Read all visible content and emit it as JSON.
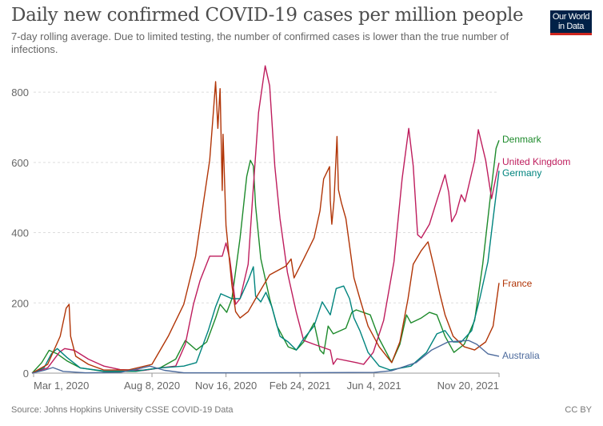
{
  "header": {
    "title": "Daily new confirmed COVID-19 cases per million people",
    "subtitle": "7-day rolling average. Due to limited testing, the number of confirmed cases is lower than the true number of infections.",
    "logo_text": "Our World in Data"
  },
  "footer": {
    "source": "Source: Johns Hopkins University CSSE COVID-19 Data",
    "license": "CC BY"
  },
  "chart_data": {
    "type": "line",
    "title": "Daily new confirmed COVID-19 cases per million people",
    "ylim": [
      0,
      880
    ],
    "xlim": [
      "2020-03-01",
      "2021-11-20"
    ],
    "grid": "horizontal dashed",
    "legend": "right, inline labels at line ends",
    "y_ticks": [
      "0",
      "200",
      "400",
      "600",
      "800"
    ],
    "y_tick_values": [
      0,
      200,
      400,
      600,
      800
    ],
    "x_ticks": [
      {
        "label": "Mar 1, 2020",
        "date": "2020-03-01"
      },
      {
        "label": "Aug 8, 2020",
        "date": "2020-08-08"
      },
      {
        "label": "Nov 16, 2020",
        "date": "2020-11-16"
      },
      {
        "label": "Feb 24, 2021",
        "date": "2021-02-24"
      },
      {
        "label": "Jun 4, 2021",
        "date": "2021-06-04"
      },
      {
        "label": "Nov 20, 2021",
        "date": "2021-11-20"
      }
    ],
    "series": [
      {
        "name": "Denmark",
        "color": "#1d8a2b",
        "points": [
          [
            "2020-02-28",
            0
          ],
          [
            "2020-03-12",
            30
          ],
          [
            "2020-03-22",
            65
          ],
          [
            "2020-04-02",
            55
          ],
          [
            "2020-04-15",
            35
          ],
          [
            "2020-05-03",
            15
          ],
          [
            "2020-06-04",
            5
          ],
          [
            "2020-07-17",
            5
          ],
          [
            "2020-08-19",
            15
          ],
          [
            "2020-09-09",
            40
          ],
          [
            "2020-09-22",
            93
          ],
          [
            "2020-10-07",
            66
          ],
          [
            "2020-10-21",
            89
          ],
          [
            "2020-11-02",
            157
          ],
          [
            "2020-11-08",
            196
          ],
          [
            "2020-11-17",
            173
          ],
          [
            "2020-11-24",
            212
          ],
          [
            "2020-12-05",
            385
          ],
          [
            "2020-12-14",
            560
          ],
          [
            "2020-12-19",
            606
          ],
          [
            "2020-12-23",
            590
          ],
          [
            "2020-12-26",
            476
          ],
          [
            "2021-01-02",
            326
          ],
          [
            "2021-01-14",
            212
          ],
          [
            "2021-01-24",
            134
          ],
          [
            "2021-02-08",
            75
          ],
          [
            "2021-02-19",
            66
          ],
          [
            "2021-03-01",
            89
          ],
          [
            "2021-03-15",
            143
          ],
          [
            "2021-03-23",
            66
          ],
          [
            "2021-03-28",
            55
          ],
          [
            "2021-04-03",
            134
          ],
          [
            "2021-04-10",
            112
          ],
          [
            "2021-04-27",
            128
          ],
          [
            "2021-05-05",
            173
          ],
          [
            "2021-05-11",
            180
          ],
          [
            "2021-05-30",
            166
          ],
          [
            "2021-06-11",
            98
          ],
          [
            "2021-06-28",
            30
          ],
          [
            "2021-07-09",
            82
          ],
          [
            "2021-07-18",
            166
          ],
          [
            "2021-07-24",
            143
          ],
          [
            "2021-08-07",
            157
          ],
          [
            "2021-08-18",
            173
          ],
          [
            "2021-08-28",
            166
          ],
          [
            "2021-09-08",
            105
          ],
          [
            "2021-09-20",
            59
          ],
          [
            "2021-10-04",
            82
          ],
          [
            "2021-10-18",
            150
          ],
          [
            "2021-10-29",
            310
          ],
          [
            "2021-11-09",
            515
          ],
          [
            "2021-11-16",
            640
          ],
          [
            "2021-11-20",
            663
          ]
        ]
      },
      {
        "name": "United Kingdom",
        "color": "#be1d5d",
        "points": [
          [
            "2020-02-28",
            0
          ],
          [
            "2020-03-20",
            15
          ],
          [
            "2020-04-05",
            60
          ],
          [
            "2020-04-12",
            70
          ],
          [
            "2020-04-25",
            65
          ],
          [
            "2020-05-14",
            40
          ],
          [
            "2020-06-04",
            20
          ],
          [
            "2020-06-26",
            10
          ],
          [
            "2020-07-28",
            8
          ],
          [
            "2020-08-19",
            15
          ],
          [
            "2020-09-09",
            20
          ],
          [
            "2020-09-22",
            82
          ],
          [
            "2020-10-03",
            196
          ],
          [
            "2020-10-12",
            264
          ],
          [
            "2020-10-25",
            333
          ],
          [
            "2020-11-11",
            333
          ],
          [
            "2020-11-16",
            371
          ],
          [
            "2020-11-21",
            326
          ],
          [
            "2020-11-29",
            196
          ],
          [
            "2020-12-05",
            212
          ],
          [
            "2020-12-16",
            310
          ],
          [
            "2020-12-23",
            530
          ],
          [
            "2020-12-30",
            742
          ],
          [
            "2021-01-08",
            875
          ],
          [
            "2021-01-14",
            818
          ],
          [
            "2021-01-21",
            590
          ],
          [
            "2021-01-28",
            440
          ],
          [
            "2021-02-07",
            287
          ],
          [
            "2021-02-19",
            173
          ],
          [
            "2021-03-01",
            93
          ],
          [
            "2021-03-15",
            82
          ],
          [
            "2021-04-06",
            66
          ],
          [
            "2021-04-10",
            25
          ],
          [
            "2021-04-15",
            41
          ],
          [
            "2021-05-11",
            30
          ],
          [
            "2021-05-21",
            25
          ],
          [
            "2021-06-03",
            59
          ],
          [
            "2021-06-17",
            150
          ],
          [
            "2021-07-01",
            317
          ],
          [
            "2021-07-12",
            553
          ],
          [
            "2021-07-21",
            697
          ],
          [
            "2021-07-27",
            590
          ],
          [
            "2021-08-02",
            394
          ],
          [
            "2021-08-07",
            385
          ],
          [
            "2021-08-18",
            424
          ],
          [
            "2021-08-28",
            492
          ],
          [
            "2021-09-08",
            565
          ],
          [
            "2021-09-13",
            515
          ],
          [
            "2021-09-17",
            431
          ],
          [
            "2021-09-23",
            454
          ],
          [
            "2021-09-30",
            508
          ],
          [
            "2021-10-05",
            488
          ],
          [
            "2021-10-18",
            606
          ],
          [
            "2021-10-23",
            693
          ],
          [
            "2021-11-02",
            606
          ],
          [
            "2021-11-10",
            497
          ],
          [
            "2021-11-16",
            560
          ],
          [
            "2021-11-20",
            599
          ]
        ]
      },
      {
        "name": "Germany",
        "color": "#00847e",
        "points": [
          [
            "2020-02-28",
            0
          ],
          [
            "2020-03-15",
            15
          ],
          [
            "2020-03-25",
            55
          ],
          [
            "2020-04-02",
            70
          ],
          [
            "2020-04-15",
            45
          ],
          [
            "2020-05-03",
            15
          ],
          [
            "2020-06-04",
            6
          ],
          [
            "2020-07-17",
            6
          ],
          [
            "2020-08-19",
            15
          ],
          [
            "2020-09-20",
            20
          ],
          [
            "2020-10-07",
            30
          ],
          [
            "2020-10-23",
            121
          ],
          [
            "2020-11-02",
            189
          ],
          [
            "2020-11-09",
            226
          ],
          [
            "2020-11-24",
            212
          ],
          [
            "2020-12-05",
            212
          ],
          [
            "2020-12-16",
            264
          ],
          [
            "2020-12-23",
            303
          ],
          [
            "2020-12-26",
            219
          ],
          [
            "2021-01-02",
            203
          ],
          [
            "2021-01-09",
            230
          ],
          [
            "2021-01-17",
            189
          ],
          [
            "2021-01-28",
            105
          ],
          [
            "2021-02-08",
            89
          ],
          [
            "2021-02-19",
            66
          ],
          [
            "2021-03-01",
            98
          ],
          [
            "2021-03-15",
            134
          ],
          [
            "2021-03-26",
            203
          ],
          [
            "2021-04-06",
            166
          ],
          [
            "2021-04-14",
            241
          ],
          [
            "2021-04-24",
            248
          ],
          [
            "2021-05-02",
            212
          ],
          [
            "2021-05-08",
            157
          ],
          [
            "2021-05-16",
            121
          ],
          [
            "2021-05-27",
            59
          ],
          [
            "2021-06-11",
            20
          ],
          [
            "2021-06-26",
            9
          ],
          [
            "2021-07-24",
            20
          ],
          [
            "2021-08-14",
            59
          ],
          [
            "2021-08-28",
            112
          ],
          [
            "2021-09-08",
            121
          ],
          [
            "2021-09-19",
            89
          ],
          [
            "2021-09-30",
            89
          ],
          [
            "2021-10-14",
            121
          ],
          [
            "2021-10-25",
            212
          ],
          [
            "2021-11-05",
            317
          ],
          [
            "2021-11-12",
            440
          ],
          [
            "2021-11-20",
            576
          ]
        ]
      },
      {
        "name": "France",
        "color": "#b13507",
        "points": [
          [
            "2020-02-28",
            0
          ],
          [
            "2020-03-20",
            25
          ],
          [
            "2020-04-06",
            105
          ],
          [
            "2020-04-14",
            185
          ],
          [
            "2020-04-18",
            196
          ],
          [
            "2020-04-20",
            105
          ],
          [
            "2020-04-27",
            48
          ],
          [
            "2020-05-14",
            25
          ],
          [
            "2020-06-04",
            9
          ],
          [
            "2020-07-07",
            9
          ],
          [
            "2020-08-08",
            25
          ],
          [
            "2020-08-30",
            105
          ],
          [
            "2020-09-20",
            196
          ],
          [
            "2020-10-06",
            333
          ],
          [
            "2020-10-17",
            492
          ],
          [
            "2020-10-25",
            606
          ],
          [
            "2020-10-30",
            743
          ],
          [
            "2020-11-02",
            830
          ],
          [
            "2020-11-05",
            697
          ],
          [
            "2020-11-08",
            810
          ],
          [
            "2020-11-11",
            520
          ],
          [
            "2020-11-12",
            680
          ],
          [
            "2020-11-16",
            420
          ],
          [
            "2020-11-24",
            250
          ],
          [
            "2020-11-29",
            175
          ],
          [
            "2020-12-05",
            157
          ],
          [
            "2020-12-16",
            175
          ],
          [
            "2020-12-26",
            212
          ],
          [
            "2021-01-14",
            280
          ],
          [
            "2021-02-05",
            305
          ],
          [
            "2021-02-12",
            325
          ],
          [
            "2021-02-16",
            271
          ],
          [
            "2021-03-01",
            325
          ],
          [
            "2021-03-15",
            385
          ],
          [
            "2021-03-23",
            462
          ],
          [
            "2021-03-28",
            553
          ],
          [
            "2021-04-05",
            588
          ],
          [
            "2021-04-06",
            492
          ],
          [
            "2021-04-08",
            424
          ],
          [
            "2021-04-11",
            492
          ],
          [
            "2021-04-15",
            674
          ],
          [
            "2021-04-17",
            522
          ],
          [
            "2021-04-21",
            485
          ],
          [
            "2021-04-27",
            440
          ],
          [
            "2021-05-08",
            271
          ],
          [
            "2021-05-16",
            212
          ],
          [
            "2021-05-27",
            134
          ],
          [
            "2021-06-11",
            75
          ],
          [
            "2021-06-28",
            30
          ],
          [
            "2021-07-09",
            89
          ],
          [
            "2021-07-20",
            212
          ],
          [
            "2021-07-27",
            310
          ],
          [
            "2021-08-07",
            349
          ],
          [
            "2021-08-16",
            374
          ],
          [
            "2021-08-24",
            303
          ],
          [
            "2021-09-01",
            226
          ],
          [
            "2021-09-08",
            166
          ],
          [
            "2021-09-19",
            105
          ],
          [
            "2021-10-04",
            75
          ],
          [
            "2021-10-18",
            66
          ],
          [
            "2021-11-02",
            89
          ],
          [
            "2021-11-12",
            134
          ],
          [
            "2021-11-20",
            257
          ]
        ]
      },
      {
        "name": "Australia",
        "color": "#4c6a9c",
        "points": [
          [
            "2020-02-28",
            0
          ],
          [
            "2020-03-15",
            8
          ],
          [
            "2020-03-27",
            16
          ],
          [
            "2020-04-10",
            5
          ],
          [
            "2020-05-10",
            1
          ],
          [
            "2020-06-26",
            2
          ],
          [
            "2020-07-20",
            12
          ],
          [
            "2020-08-05",
            20
          ],
          [
            "2020-08-25",
            8
          ],
          [
            "2020-09-20",
            1
          ],
          [
            "2021-01-01",
            1
          ],
          [
            "2021-06-04",
            2
          ],
          [
            "2021-06-28",
            7
          ],
          [
            "2021-07-31",
            30
          ],
          [
            "2021-08-21",
            66
          ],
          [
            "2021-09-12",
            89
          ],
          [
            "2021-09-26",
            91
          ],
          [
            "2021-10-10",
            93
          ],
          [
            "2021-10-21",
            82
          ],
          [
            "2021-11-05",
            55
          ],
          [
            "2021-11-20",
            48
          ]
        ]
      }
    ]
  }
}
